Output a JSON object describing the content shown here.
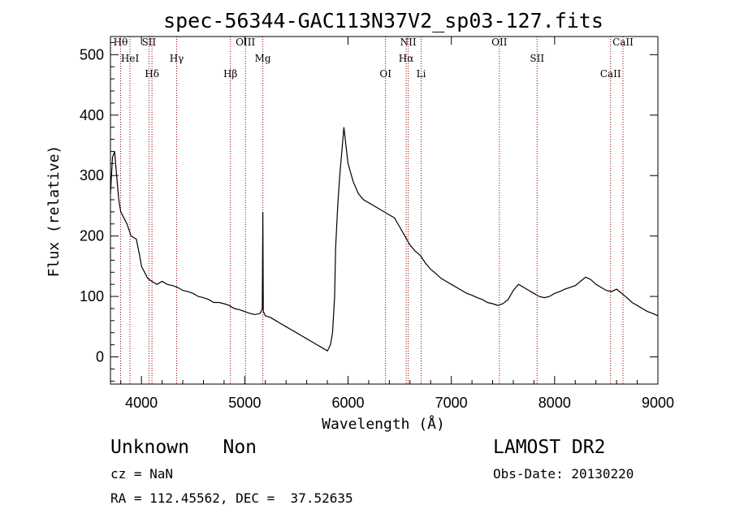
{
  "chart_data": {
    "type": "line",
    "title": "spec-56344-GAC113N37V2_sp03-127.fits",
    "xlabel": "Wavelength (Å)",
    "ylabel": "Flux (relative)",
    "xlim": [
      3700,
      9000
    ],
    "ylim": [
      -45,
      530
    ],
    "xticks": [
      4000,
      5000,
      6000,
      7000,
      8000,
      9000
    ],
    "yticks": [
      0,
      100,
      200,
      300,
      400,
      500
    ],
    "grid": false,
    "legend": "none",
    "series": [
      {
        "x": [
          3700,
          3720,
          3740,
          3760,
          3780,
          3800,
          3830,
          3860,
          3900,
          3950,
          3980,
          4000,
          4030,
          4060,
          4100,
          4150,
          4200,
          4250,
          4300,
          4350,
          4400,
          4450,
          4500,
          4550,
          4600,
          4650,
          4700,
          4750,
          4800,
          4850,
          4900,
          4950,
          5000,
          5050,
          5100,
          5150,
          5170,
          5175,
          5180,
          5200,
          5250,
          5300,
          5350,
          5400,
          5450,
          5500,
          5550,
          5600,
          5650,
          5700,
          5750,
          5800,
          5830,
          5850,
          5870,
          5880,
          5900,
          5920,
          5940,
          5960,
          5980,
          6000,
          6050,
          6100,
          6150,
          6200,
          6250,
          6300,
          6350,
          6400,
          6450,
          6500,
          6550,
          6600,
          6650,
          6700,
          6750,
          6800,
          6850,
          6900,
          6950,
          7000,
          7050,
          7100,
          7150,
          7200,
          7250,
          7300,
          7350,
          7400,
          7450,
          7500,
          7550,
          7600,
          7650,
          7700,
          7750,
          7800,
          7850,
          7900,
          7950,
          8000,
          8050,
          8100,
          8150,
          8200,
          8250,
          8300,
          8350,
          8400,
          8450,
          8500,
          8550,
          8600,
          8650,
          8700,
          8750,
          8800,
          8850,
          8900,
          8950,
          9000
        ],
        "y": [
          270,
          330,
          340,
          300,
          260,
          240,
          230,
          220,
          200,
          195,
          170,
          150,
          140,
          130,
          125,
          120,
          125,
          120,
          118,
          115,
          110,
          108,
          105,
          100,
          98,
          95,
          90,
          90,
          88,
          85,
          80,
          78,
          75,
          72,
          70,
          72,
          80,
          240,
          75,
          68,
          65,
          60,
          55,
          50,
          45,
          40,
          35,
          30,
          25,
          20,
          15,
          10,
          20,
          40,
          100,
          180,
          250,
          300,
          340,
          380,
          350,
          320,
          290,
          270,
          260,
          255,
          250,
          245,
          240,
          235,
          230,
          215,
          200,
          185,
          175,
          168,
          155,
          145,
          138,
          130,
          125,
          120,
          115,
          110,
          105,
          102,
          98,
          95,
          90,
          88,
          85,
          88,
          95,
          110,
          120,
          115,
          110,
          105,
          100,
          98,
          100,
          105,
          108,
          112,
          115,
          118,
          125,
          132,
          128,
          120,
          115,
          110,
          108,
          112,
          105,
          98,
          90,
          85,
          80,
          75,
          72,
          68
        ]
      }
    ],
    "annotations": [
      {
        "label": "Hθ",
        "x": 3798
      },
      {
        "label": "HeI",
        "x": 3889
      },
      {
        "label": "Hδ",
        "x": 4102
      },
      {
        "label": "SII",
        "x": 4072
      },
      {
        "label": "Hγ",
        "x": 4341
      },
      {
        "label": "Hβ",
        "x": 4861
      },
      {
        "label": "OIII",
        "x": 5007
      },
      {
        "label": "Mg",
        "x": 5175
      },
      {
        "label": "OI",
        "x": 6363
      },
      {
        "label": "NII",
        "x": 6583
      },
      {
        "label": "Hα",
        "x": 6563
      },
      {
        "label": "Li",
        "x": 6708
      },
      {
        "label": "OII",
        "x": 7465
      },
      {
        "label": "SII",
        "x": 7830
      },
      {
        "label": "CaII",
        "x": 8542
      },
      {
        "label": "CaII",
        "x": 8662
      }
    ]
  },
  "info": {
    "class_line": "Unknown   Non",
    "survey": "LAMOST DR2",
    "cz": "cz = NaN",
    "obs_date": "Obs-Date: 20130220",
    "coords": "RA = 112.45562, DEC =  37.52635"
  },
  "colors": {
    "axis": "#000000",
    "spectrum": "#000000",
    "line_marker": "#8b0000"
  }
}
